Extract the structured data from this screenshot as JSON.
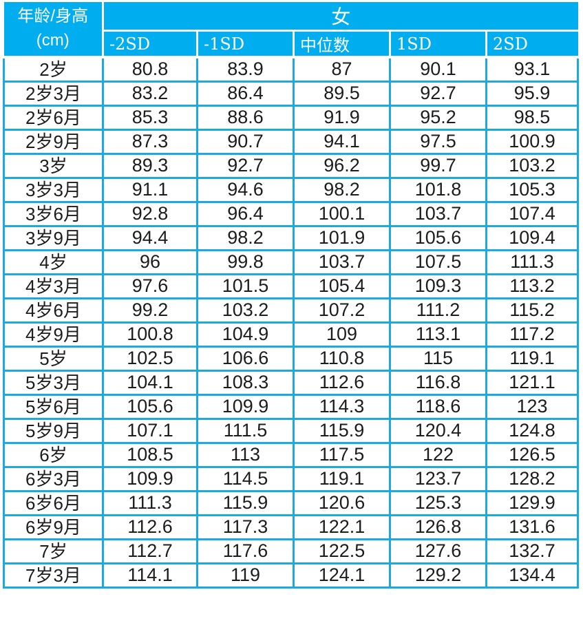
{
  "header": {
    "row_header_line1": "年龄/身高",
    "row_header_line2": "(cm)",
    "group_label": "女",
    "columns": [
      "-2SD",
      "-1SD",
      "中位数",
      "1SD",
      "2SD"
    ]
  },
  "colors": {
    "header_bg": "#00AEEF",
    "grid_line": "#1CA9DE",
    "header_divider": "#FFFFFF",
    "body_bg": "#FFFFFF",
    "header_text": "#FFFFFF",
    "body_text": "#1C1C1C"
  },
  "chart_data": {
    "type": "table",
    "group_header": "女",
    "columns": [
      "年龄/身高 (cm)",
      "-2SD",
      "-1SD",
      "中位数",
      "1SD",
      "2SD"
    ],
    "rows": [
      [
        "2岁",
        80.8,
        83.9,
        87,
        90.1,
        93.1
      ],
      [
        "2岁3月",
        83.2,
        86.4,
        89.5,
        92.7,
        95.9
      ],
      [
        "2岁6月",
        85.3,
        88.6,
        91.9,
        95.2,
        98.5
      ],
      [
        "2岁9月",
        87.3,
        90.7,
        94.1,
        97.5,
        100.9
      ],
      [
        "3岁",
        89.3,
        92.7,
        96.2,
        99.7,
        103.2
      ],
      [
        "3岁3月",
        91.1,
        94.6,
        98.2,
        101.8,
        105.3
      ],
      [
        "3岁6月",
        92.8,
        96.4,
        100.1,
        103.7,
        107.4
      ],
      [
        "3岁9月",
        94.4,
        98.2,
        101.9,
        105.6,
        109.4
      ],
      [
        "4岁",
        96,
        99.8,
        103.7,
        107.5,
        111.3
      ],
      [
        "4岁3月",
        97.6,
        101.5,
        105.4,
        109.3,
        113.2
      ],
      [
        "4岁6月",
        99.2,
        103.2,
        107.2,
        111.2,
        115.2
      ],
      [
        "4岁9月",
        100.8,
        104.9,
        109,
        113.1,
        117.2
      ],
      [
        "5岁",
        102.5,
        106.6,
        110.8,
        115,
        119.1
      ],
      [
        "5岁3月",
        104.1,
        108.3,
        112.6,
        116.8,
        121.1
      ],
      [
        "5岁6月",
        105.6,
        109.9,
        114.3,
        118.6,
        123
      ],
      [
        "5岁9月",
        107.1,
        111.5,
        115.9,
        120.4,
        124.8
      ],
      [
        "6岁",
        108.5,
        113,
        117.5,
        122,
        126.5
      ],
      [
        "6岁3月",
        109.9,
        114.5,
        119.1,
        123.7,
        128.2
      ],
      [
        "6岁6月",
        111.3,
        115.9,
        120.6,
        125.3,
        129.9
      ],
      [
        "6岁9月",
        112.6,
        117.3,
        122.1,
        126.8,
        131.6
      ],
      [
        "7岁",
        112.7,
        117.6,
        122.5,
        127.6,
        132.7
      ],
      [
        "7岁3月",
        114.1,
        119,
        124.1,
        129.2,
        134.4
      ]
    ]
  }
}
